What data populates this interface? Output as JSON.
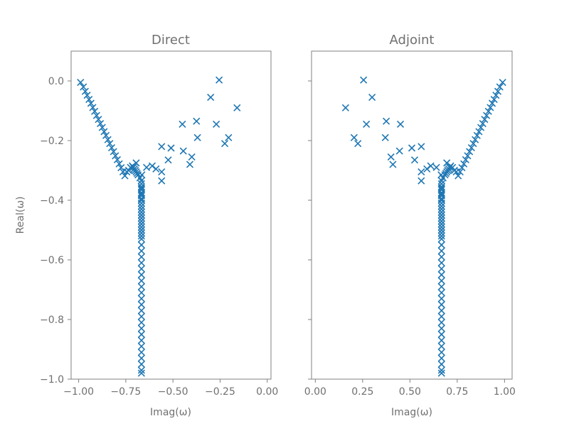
{
  "figure": {
    "ylabel": "Real(ω)"
  },
  "chart_data": [
    {
      "type": "scatter",
      "title": "Direct",
      "xlabel": "Imag(ω)",
      "ylabel": "Real(ω)",
      "xlim": [
        -1.04,
        0.02
      ],
      "ylim": [
        -1.0,
        0.1
      ],
      "xticks": [
        "−1.00",
        "−0.75",
        "−0.50",
        "−0.25",
        "0.00"
      ],
      "xtick_values": [
        -1.0,
        -0.75,
        -0.5,
        -0.25,
        0.0
      ],
      "yticks": [
        "0.0",
        "−0.2",
        "−0.4",
        "−0.6",
        "−0.8",
        "−1.0"
      ],
      "ytick_values": [
        0.0,
        -0.2,
        -0.4,
        -0.6,
        -0.8,
        -1.0
      ],
      "marker": "x",
      "color": "#1f77b4",
      "grid": false,
      "series": [
        {
          "x": [
            -0.99,
            -0.975,
            -0.965,
            -0.955,
            -0.945,
            -0.935,
            -0.925,
            -0.915,
            -0.905,
            -0.895,
            -0.885,
            -0.875,
            -0.865,
            -0.855,
            -0.845,
            -0.835,
            -0.825,
            -0.815,
            -0.805,
            -0.795,
            -0.785,
            -0.775,
            -0.765,
            -0.755,
            -0.745,
            -0.735,
            -0.725,
            -0.715,
            -0.705,
            -0.695,
            -0.685,
            -0.675,
            -0.668,
            -0.667,
            -0.667,
            -0.667,
            -0.667,
            -0.667,
            -0.667,
            -0.667,
            -0.667,
            -0.667,
            -0.667,
            -0.667,
            -0.667,
            -0.667,
            -0.667,
            -0.667,
            -0.667,
            -0.667,
            -0.667,
            -0.667,
            -0.667,
            -0.667,
            -0.667,
            -0.667,
            -0.667,
            -0.667,
            -0.667,
            -0.667,
            -0.667,
            -0.667,
            -0.667,
            -0.667,
            -0.667,
            -0.667,
            -0.667,
            -0.667,
            -0.667,
            -0.667,
            -0.667,
            -0.667,
            -0.667,
            -0.667,
            -0.667,
            -0.667,
            -0.667,
            -0.667,
            -0.665,
            -0.64,
            -0.61,
            -0.59,
            -0.56,
            -0.56,
            -0.525,
            -0.51,
            -0.56,
            -0.45,
            -0.445,
            -0.41,
            -0.4,
            -0.375,
            -0.37,
            -0.3,
            -0.27,
            -0.255,
            -0.225,
            -0.205,
            -0.16,
            -0.695,
            -0.69,
            -0.7,
            -0.71
          ],
          "y": [
            -0.005,
            -0.02,
            -0.035,
            -0.048,
            -0.062,
            -0.075,
            -0.089,
            -0.102,
            -0.116,
            -0.129,
            -0.143,
            -0.156,
            -0.17,
            -0.183,
            -0.197,
            -0.21,
            -0.224,
            -0.237,
            -0.251,
            -0.264,
            -0.278,
            -0.291,
            -0.305,
            -0.318,
            -0.305,
            -0.3,
            -0.29,
            -0.285,
            -0.295,
            -0.305,
            -0.315,
            -0.325,
            -0.335,
            -0.345,
            -0.355,
            -0.365,
            -0.375,
            -0.385,
            -0.395,
            -0.41,
            -0.43,
            -0.45,
            -0.47,
            -0.49,
            -0.51,
            -0.53,
            -0.55,
            -0.57,
            -0.59,
            -0.61,
            -0.63,
            -0.65,
            -0.67,
            -0.69,
            -0.71,
            -0.73,
            -0.75,
            -0.77,
            -0.79,
            -0.81,
            -0.83,
            -0.85,
            -0.87,
            -0.89,
            -0.91,
            -0.93,
            -0.95,
            -0.97,
            -0.98,
            -0.36,
            -0.38,
            -0.4,
            -0.42,
            -0.44,
            -0.46,
            -0.48,
            -0.5,
            -0.52,
            -0.315,
            -0.29,
            -0.285,
            -0.295,
            -0.22,
            -0.335,
            -0.265,
            -0.225,
            -0.305,
            -0.145,
            -0.235,
            -0.28,
            -0.255,
            -0.135,
            -0.19,
            -0.055,
            -0.145,
            0.003,
            -0.21,
            -0.19,
            -0.09,
            -0.275,
            -0.31,
            -0.3,
            -0.29
          ]
        }
      ]
    },
    {
      "type": "scatter",
      "title": "Adjoint",
      "xlabel": "Imag(ω)",
      "ylabel": "",
      "xlim": [
        -0.02,
        1.04
      ],
      "ylim": [
        -1.0,
        0.1
      ],
      "xticks": [
        "0.00",
        "0.25",
        "0.50",
        "0.75",
        "1.00"
      ],
      "xtick_values": [
        0.0,
        0.25,
        0.5,
        0.75,
        1.0
      ],
      "yticks": [],
      "ytick_values": [
        0.0,
        -0.2,
        -0.4,
        -0.6,
        -0.8,
        -1.0
      ],
      "marker": "x",
      "color": "#1f77b4",
      "grid": false,
      "series": [
        {
          "mirror_of": 0
        }
      ]
    }
  ]
}
